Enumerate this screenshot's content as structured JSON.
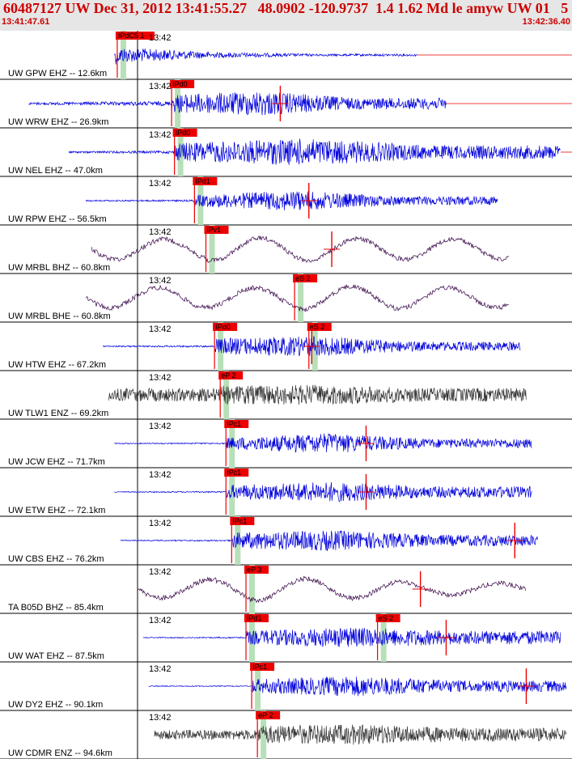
{
  "header": {
    "title": "60487127 UW Dec 31, 2012 13:41:55.27   48.0902 -120.9737  1.4 1.62 Md le amyw UW 01   5",
    "start_time": "13:41:47.61",
    "end_time": "13:42:36.40"
  },
  "colors": {
    "header_bg": "#e6e6e6",
    "header_text": "#cc0000",
    "trace_blue": "#0000dd",
    "trace_purple": "#330044",
    "trace_gray": "#333333",
    "pick_red": "#ee0000",
    "shade_green": "#b8e0b8"
  },
  "chart_data": {
    "type": "line",
    "title": "60487127 UW Dec 31, 2012 13:41:55.27   48.0902 -120.9737  1.4 1.62 Md le amyw UW 01   5",
    "x_range": [
      "13:41:47.61",
      "13:42:36.40"
    ],
    "time_label": "13:42",
    "series": [
      {
        "name": "UW GPW EHZ -- 12.6km",
        "color": "trace_blue",
        "amp": [
          0.02,
          0.8,
          0.35,
          0.12,
          0.05
        ],
        "start": 0.2,
        "end": 0.73,
        "freq": "high",
        "picks": [
          {
            "label": "IPdC5 1",
            "t": 0.205
          }
        ],
        "s_pick": null
      },
      {
        "name": "UW WRW EHZ -- 26.9km",
        "color": "trace_blue",
        "amp": [
          0.05,
          0.1,
          0.4,
          0.55,
          0.25
        ],
        "start": 0.05,
        "end": 0.78,
        "freq": "high",
        "picks": [
          {
            "label": "IPd0",
            "t": 0.3
          }
        ],
        "s_pick": {
          "label": "",
          "t": 0.49
        }
      },
      {
        "name": "UW NEL EHZ -- 47.0km",
        "color": "trace_blue",
        "amp": [
          0.04,
          0.06,
          0.4,
          0.6,
          0.3
        ],
        "start": 0.12,
        "end": 0.98,
        "freq": "high",
        "picks": [
          {
            "label": "IPd0",
            "t": 0.305
          }
        ],
        "s_pick": null
      },
      {
        "name": "UW RPW EHZ -- 56.5km",
        "color": "trace_blue",
        "amp": [
          0.03,
          0.04,
          0.25,
          0.45,
          0.2
        ],
        "start": 0.15,
        "end": 0.87,
        "freq": "high",
        "picks": [
          {
            "label": "IPd1",
            "t": 0.34
          }
        ],
        "s_pick": {
          "label": "",
          "t": 0.54
        }
      },
      {
        "name": "UW MRBL BHZ -- 60.8km",
        "color": "trace_purple",
        "amp": [
          0.35,
          0.35,
          0.4,
          0.4,
          0.35
        ],
        "start": 0.16,
        "end": 0.89,
        "freq": "low",
        "picks": [
          {
            "label": "iPv1",
            "t": 0.36
          }
        ],
        "s_pick": {
          "label": "",
          "t": 0.58
        }
      },
      {
        "name": "UW MRBL BHE -- 60.8km",
        "color": "trace_purple",
        "amp": [
          0.35,
          0.35,
          0.4,
          0.4,
          0.35
        ],
        "start": 0.15,
        "end": 0.89,
        "freq": "low",
        "picks": [
          {
            "label": "eS 2",
            "t": 0.515
          }
        ],
        "s_pick": null
      },
      {
        "name": "UW HTW EHZ -- 67.2km",
        "color": "trace_blue",
        "amp": [
          0.03,
          0.04,
          0.35,
          0.45,
          0.2
        ],
        "start": 0.18,
        "end": 0.91,
        "freq": "high",
        "picks": [
          {
            "label": "IPd0",
            "t": 0.375
          },
          {
            "label": "eS 2",
            "t": 0.54
          }
        ],
        "s_pick": {
          "label": "",
          "t": 0.545
        }
      },
      {
        "name": "UW TLW1 ENZ -- 69.2km",
        "color": "trace_gray",
        "amp": [
          0.28,
          0.3,
          0.4,
          0.45,
          0.3
        ],
        "start": 0.19,
        "end": 0.92,
        "freq": "high",
        "picks": [
          {
            "label": "eP 2",
            "t": 0.385
          }
        ],
        "s_pick": null
      },
      {
        "name": "UW JCW EHZ -- 71.7km",
        "color": "trace_blue",
        "amp": [
          0.02,
          0.03,
          0.25,
          0.45,
          0.2
        ],
        "start": 0.2,
        "end": 0.93,
        "freq": "high",
        "picks": [
          {
            "label": "IPc1",
            "t": 0.395
          }
        ],
        "s_pick": {
          "label": "",
          "t": 0.64
        }
      },
      {
        "name": "UW ETW EHZ -- 72.1km",
        "color": "trace_blue",
        "amp": [
          0.02,
          0.03,
          0.3,
          0.45,
          0.25
        ],
        "start": 0.2,
        "end": 0.93,
        "freq": "high",
        "picks": [
          {
            "label": "IPc1",
            "t": 0.395
          }
        ],
        "s_pick": {
          "label": "",
          "t": 0.64
        }
      },
      {
        "name": "UW CBS EHZ -- 76.2km",
        "color": "trace_blue",
        "amp": [
          0.02,
          0.03,
          0.35,
          0.45,
          0.25
        ],
        "start": 0.21,
        "end": 0.94,
        "freq": "high",
        "picks": [
          {
            "label": "IPc1",
            "t": 0.405
          }
        ],
        "s_pick": {
          "label": "",
          "t": 0.9
        }
      },
      {
        "name": "TA B05D BHZ -- 85.4km",
        "color": "trace_purple",
        "amp": [
          0.3,
          0.35,
          0.4,
          0.35,
          0.2
        ],
        "start": 0.24,
        "end": 0.92,
        "freq": "low",
        "picks": [
          {
            "label": "eP 3",
            "t": 0.43
          }
        ],
        "s_pick": {
          "label": "",
          "t": 0.735
        }
      },
      {
        "name": "UW WAT EHZ -- 87.5km",
        "color": "trace_blue",
        "amp": [
          0.02,
          0.03,
          0.3,
          0.45,
          0.3
        ],
        "start": 0.25,
        "end": 0.98,
        "freq": "high",
        "picks": [
          {
            "label": "IPd1",
            "t": 0.43
          },
          {
            "label": "eS 2",
            "t": 0.66
          }
        ],
        "s_pick": {
          "label": "",
          "t": 0.78
        }
      },
      {
        "name": "UW DY2 EHZ -- 90.1km",
        "color": "trace_blue",
        "amp": [
          0.02,
          0.02,
          0.3,
          0.45,
          0.25
        ],
        "start": 0.26,
        "end": 0.99,
        "freq": "high",
        "picks": [
          {
            "label": "IPc1",
            "t": 0.44
          }
        ],
        "s_pick": {
          "label": "",
          "t": 0.92
        }
      },
      {
        "name": "UW CDMR ENZ -- 94.6km",
        "color": "trace_gray",
        "amp": [
          0.2,
          0.22,
          0.4,
          0.45,
          0.3
        ],
        "start": 0.27,
        "end": 0.99,
        "freq": "high",
        "picks": [
          {
            "label": "eP 2",
            "t": 0.45
          }
        ],
        "s_pick": null
      }
    ]
  }
}
